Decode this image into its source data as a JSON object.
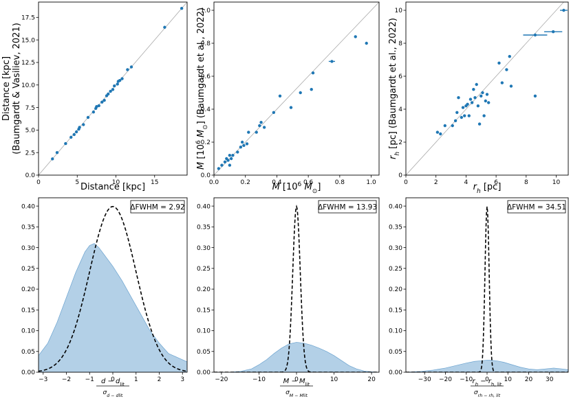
{
  "colors": {
    "marker": "#1f77b4",
    "fill": "#a6c8e3",
    "fill_edge": "#6aa2cf",
    "identity": "#aaaaaa"
  },
  "chart_data": [
    {
      "type": "scatter",
      "name": "distance",
      "xlabel": "Distance [kpc]",
      "ylabel_line1": "Distance [kpc]",
      "ylabel_line2": "(Baumgardt & Vasiliev, 2021)",
      "xlim": [
        0,
        19.2
      ],
      "ylim": [
        0,
        19.2
      ],
      "xticks": [
        0,
        5,
        10,
        15
      ],
      "xtick_labels": [
        "0",
        "5",
        "10",
        "15"
      ],
      "yticks": [
        0,
        2.5,
        5,
        7.5,
        10,
        12.5,
        15,
        17.5
      ],
      "ytick_labels": [
        "0.0",
        "2.5",
        "5.0",
        "7.5",
        "10.0",
        "12.5",
        "15.0",
        "17.5"
      ],
      "identity_line": true,
      "points": [
        [
          1.8,
          1.8
        ],
        [
          2.4,
          2.5
        ],
        [
          3.5,
          3.5
        ],
        [
          4.2,
          4.2
        ],
        [
          4.6,
          4.5
        ],
        [
          4.9,
          4.8
        ],
        [
          5.2,
          5.1
        ],
        [
          5.3,
          5.3
        ],
        [
          5.8,
          5.6
        ],
        [
          6.4,
          6.4
        ],
        [
          7.1,
          7.0
        ],
        [
          7.4,
          7.4
        ],
        [
          7.5,
          7.6
        ],
        [
          7.8,
          7.7
        ],
        [
          8.2,
          8.1
        ],
        [
          8.5,
          8.3
        ],
        [
          8.8,
          8.8
        ],
        [
          9.0,
          9.0
        ],
        [
          9.3,
          9.3
        ],
        [
          9.6,
          9.5
        ],
        [
          9.8,
          9.9
        ],
        [
          10.2,
          10.1
        ],
        [
          10.3,
          10.4
        ],
        [
          10.5,
          10.5
        ],
        [
          10.8,
          10.7
        ],
        [
          11.5,
          11.7
        ],
        [
          12.0,
          12.0
        ],
        [
          16.3,
          16.4
        ],
        [
          18.5,
          18.5
        ]
      ]
    },
    {
      "type": "scatter",
      "name": "mass",
      "xlabel": "M [10⁶ M⊙]",
      "ylabel_line1": "M [10⁶ M⊙] (Baumgardt et al., 2022)",
      "xlim": [
        0,
        1.05
      ],
      "ylim": [
        0,
        1.05
      ],
      "xticks": [
        0,
        0.2,
        0.4,
        0.6,
        0.8,
        1.0
      ],
      "xtick_labels": [
        "0.0",
        "0.2",
        "0.4",
        "0.6",
        "0.8",
        "1.0"
      ],
      "yticks": [
        0,
        0.2,
        0.4,
        0.6,
        0.8,
        1.0
      ],
      "ytick_labels": [
        "0.0",
        "0.2",
        "0.4",
        "0.6",
        "0.8",
        "1.0"
      ],
      "identity_line": true,
      "points": [
        [
          0.03,
          0.04
        ],
        [
          0.05,
          0.06
        ],
        [
          0.07,
          0.08
        ],
        [
          0.08,
          0.1
        ],
        [
          0.09,
          0.09
        ],
        [
          0.1,
          0.12
        ],
        [
          0.11,
          0.1
        ],
        [
          0.1,
          0.06
        ],
        [
          0.12,
          0.12
        ],
        [
          0.15,
          0.14
        ],
        [
          0.17,
          0.17
        ],
        [
          0.18,
          0.2
        ],
        [
          0.19,
          0.18
        ],
        [
          0.21,
          0.19
        ],
        [
          0.22,
          0.26
        ],
        [
          0.27,
          0.26
        ],
        [
          0.29,
          0.3
        ],
        [
          0.3,
          0.32
        ],
        [
          0.32,
          0.29
        ],
        [
          0.38,
          0.38
        ],
        [
          0.42,
          0.48
        ],
        [
          0.49,
          0.41
        ],
        [
          0.55,
          0.5
        ],
        [
          0.62,
          0.52
        ],
        [
          0.63,
          0.62
        ],
        [
          0.75,
          0.69
        ],
        [
          0.9,
          0.84
        ],
        [
          0.97,
          0.8
        ]
      ],
      "xerr": [
        [
          0.75,
          0.02
        ]
      ]
    },
    {
      "type": "scatter",
      "name": "rh",
      "xlabel": "r_h [pc]",
      "ylabel_line1": "r_h [pc] (Baumgardt et al., 2022)",
      "xlim": [
        0,
        10.8
      ],
      "ylim": [
        0,
        10.5
      ],
      "xticks": [
        0,
        2,
        4,
        6,
        8,
        10
      ],
      "xtick_labels": [
        "0",
        "2",
        "4",
        "6",
        "8",
        "10"
      ],
      "yticks": [
        0,
        2,
        4,
        6,
        8,
        10
      ],
      "ytick_labels": [
        "0",
        "2",
        "4",
        "6",
        "8",
        "10"
      ],
      "identity_line": true,
      "points": [
        [
          2.1,
          2.6
        ],
        [
          2.3,
          2.5
        ],
        [
          2.6,
          3.0
        ],
        [
          3.1,
          3.0
        ],
        [
          3.3,
          3.3
        ],
        [
          3.4,
          3.8
        ],
        [
          3.5,
          4.7
        ],
        [
          3.7,
          3.5
        ],
        [
          3.8,
          4.1
        ],
        [
          3.9,
          3.6
        ],
        [
          4.0,
          4.2
        ],
        [
          4.1,
          4.3
        ],
        [
          4.2,
          3.6
        ],
        [
          4.3,
          4.6
        ],
        [
          4.4,
          4.4
        ],
        [
          4.5,
          5.2
        ],
        [
          4.6,
          4.7
        ],
        [
          4.7,
          5.5
        ],
        [
          4.8,
          4.2
        ],
        [
          4.9,
          3.1
        ],
        [
          5.0,
          4.8
        ],
        [
          5.1,
          5.0
        ],
        [
          5.2,
          3.6
        ],
        [
          5.3,
          4.5
        ],
        [
          5.4,
          4.9
        ],
        [
          5.5,
          4.4
        ],
        [
          6.2,
          6.8
        ],
        [
          6.4,
          5.6
        ],
        [
          6.7,
          6.4
        ],
        [
          6.9,
          7.2
        ],
        [
          7.0,
          5.4
        ],
        [
          8.6,
          8.5
        ],
        [
          8.6,
          4.8
        ],
        [
          9.8,
          8.7
        ],
        [
          10.5,
          10.0
        ]
      ],
      "xerr": [
        [
          8.6,
          0.8
        ],
        [
          9.8,
          0.6
        ],
        [
          10.5,
          0.25
        ]
      ]
    },
    {
      "type": "area",
      "name": "dist-residual",
      "annotation": "ΔFWHM = 2.92",
      "xlabel_num": "d − d_lit",
      "xlabel_den": "σ_{d − d_lit}",
      "xlim": [
        -3.2,
        3.2
      ],
      "ylim": [
        0,
        0.42
      ],
      "xticks": [
        -3,
        -2,
        -1,
        0,
        1,
        2,
        3
      ],
      "xtick_labels": [
        "−3",
        "−2",
        "−1",
        "0",
        "1",
        "2",
        "3"
      ],
      "yticks": [
        0,
        0.05,
        0.1,
        0.15,
        0.2,
        0.25,
        0.3,
        0.35,
        0.4
      ],
      "ytick_labels": [
        "0.00",
        "0.05",
        "0.10",
        "0.15",
        "0.20",
        "0.25",
        "0.30",
        "0.35",
        "0.40"
      ],
      "kde_x": [
        -3.2,
        -2.8,
        -2.4,
        -2.0,
        -1.6,
        -1.2,
        -1.0,
        -0.8,
        -0.6,
        -0.4,
        -0.2,
        0,
        0.4,
        0.8,
        1.2,
        1.6,
        2.0,
        2.4,
        2.8,
        3.2
      ],
      "kde_y": [
        0.04,
        0.07,
        0.12,
        0.18,
        0.24,
        0.29,
        0.305,
        0.31,
        0.3,
        0.285,
        0.27,
        0.255,
        0.22,
        0.18,
        0.14,
        0.1,
        0.07,
        0.045,
        0.035,
        0.025
      ],
      "normal_sigma": 1.0
    },
    {
      "type": "area",
      "name": "mass-residual",
      "annotation": "ΔFWHM = 13.93",
      "xlabel_num": "M − M_lit",
      "xlabel_den": "σ_{M − M_lit}",
      "xlim": [
        -22,
        22
      ],
      "ylim": [
        0,
        0.42
      ],
      "xticks": [
        -20,
        -10,
        0,
        10,
        20
      ],
      "xtick_labels": [
        "−20",
        "−10",
        "0",
        "10",
        "20"
      ],
      "yticks": [
        0,
        0.05,
        0.1,
        0.15,
        0.2,
        0.25,
        0.3,
        0.35,
        0.4
      ],
      "ytick_labels": [
        "0.00",
        "0.05",
        "0.10",
        "0.15",
        "0.20",
        "0.25",
        "0.30",
        "0.35",
        "0.40"
      ],
      "kde_x": [
        -22,
        -18,
        -15,
        -12,
        -10,
        -8,
        -6,
        -4,
        -2,
        0,
        2,
        4,
        6,
        8,
        10,
        12,
        14,
        16,
        18,
        20,
        22
      ],
      "kde_y": [
        0,
        0,
        0.002,
        0.008,
        0.018,
        0.03,
        0.045,
        0.058,
        0.068,
        0.072,
        0.07,
        0.065,
        0.058,
        0.05,
        0.04,
        0.028,
        0.016,
        0.008,
        0.003,
        0.001,
        0
      ],
      "normal_sigma": 1.0
    },
    {
      "type": "area",
      "name": "rh-residual",
      "annotation": "ΔFWHM = 34.51",
      "xlabel_num": "r_h − r_h,lit",
      "xlabel_den": "σ_{r_h − r_h,lit}",
      "xlim": [
        -39,
        39
      ],
      "ylim": [
        0,
        0.42
      ],
      "xticks": [
        -30,
        -20,
        -10,
        0,
        10,
        20,
        30
      ],
      "xtick_labels": [
        "−30",
        "−20",
        "−10",
        "0",
        "10",
        "20",
        "30"
      ],
      "yticks": [
        0,
        0.05,
        0.1,
        0.15,
        0.2,
        0.25,
        0.3,
        0.35,
        0.4
      ],
      "ytick_labels": [
        "0.00",
        "0.05",
        "0.10",
        "0.15",
        "0.20",
        "0.25",
        "0.30",
        "0.35",
        "0.40"
      ],
      "kde_x": [
        -39,
        -32,
        -26,
        -20,
        -15,
        -10,
        -6,
        -2,
        0,
        2,
        5,
        8,
        12,
        16,
        20,
        24,
        28,
        32,
        36,
        39
      ],
      "kde_y": [
        0,
        0.002,
        0.005,
        0.01,
        0.016,
        0.022,
        0.026,
        0.028,
        0.029,
        0.029,
        0.027,
        0.024,
        0.018,
        0.012,
        0.008,
        0.006,
        0.008,
        0.01,
        0.008,
        0.006
      ],
      "normal_sigma": 1.0
    }
  ]
}
